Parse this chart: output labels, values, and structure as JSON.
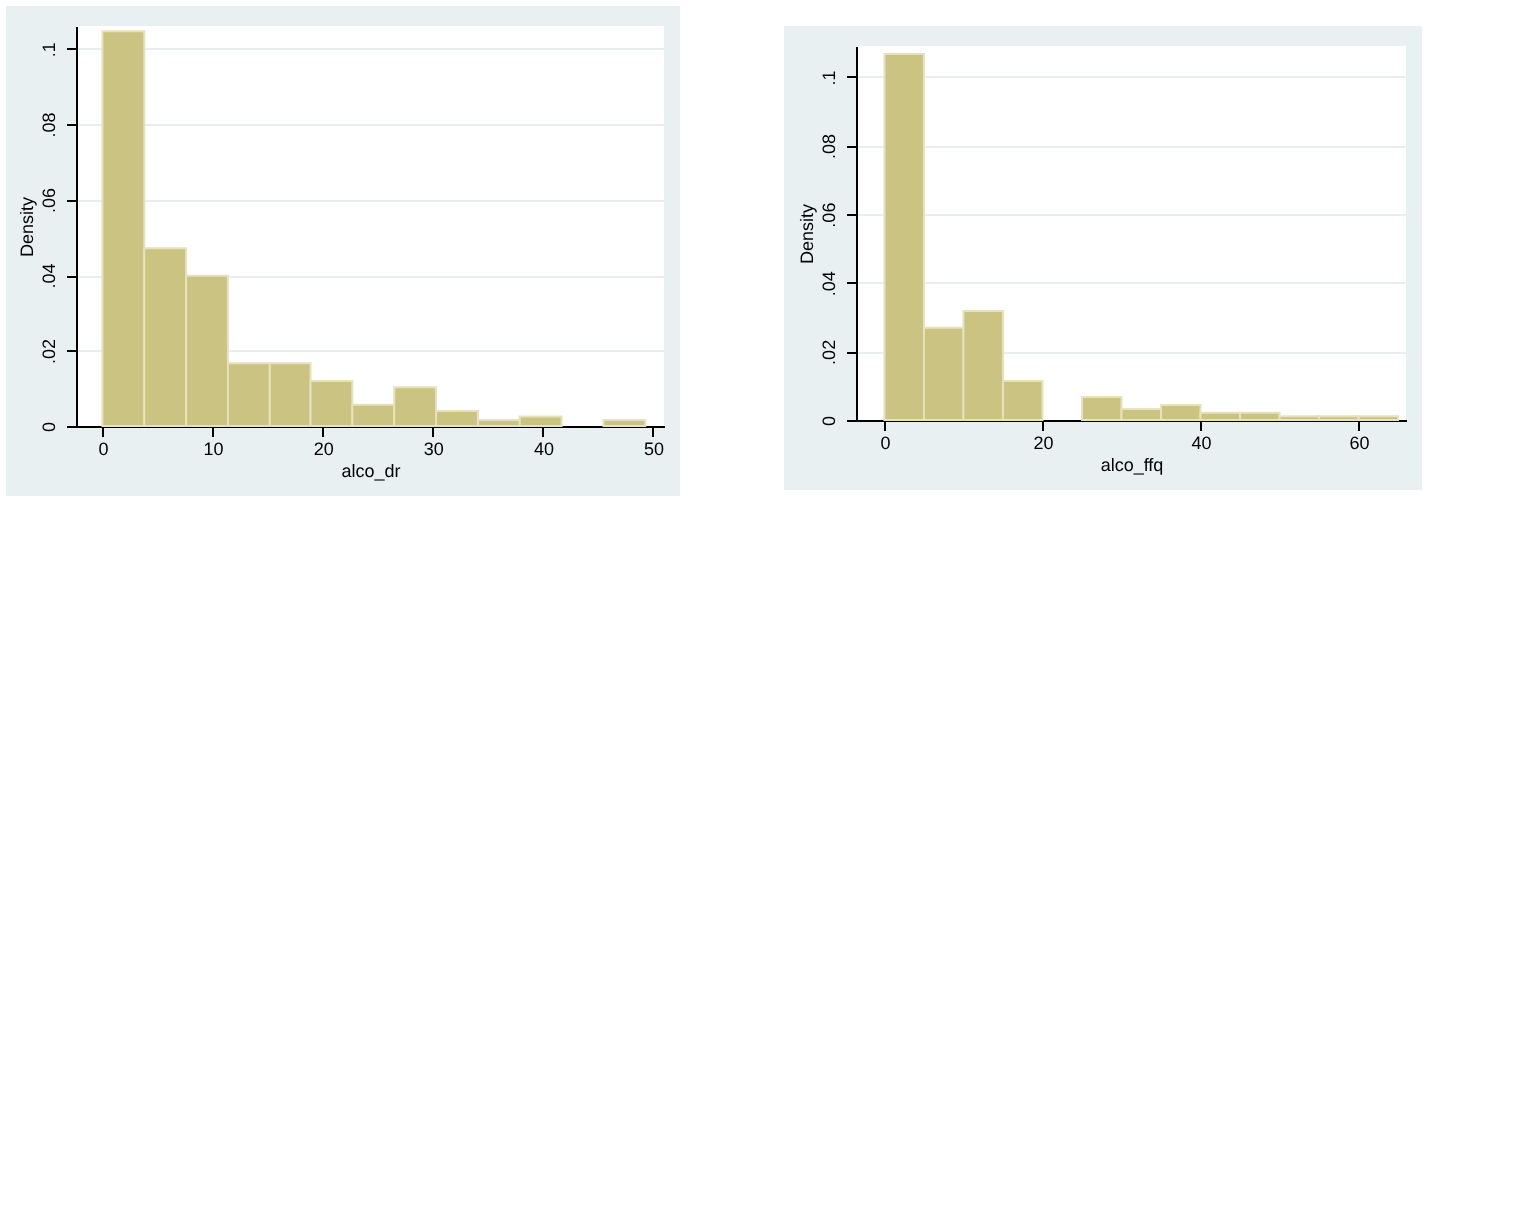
{
  "chart_data": [
    {
      "type": "histogram",
      "xlabel": "alco_dr",
      "ylabel": "Density",
      "color": "#cbc382",
      "grid": "y",
      "bins": [
        0,
        3.8,
        7.6,
        11.4,
        15.2,
        18.9,
        22.7,
        26.5,
        30.3,
        34.1,
        37.9,
        41.7,
        45.5,
        49.3
      ],
      "values": [
        0.1046,
        0.0471,
        0.0398,
        0.0166,
        0.0166,
        0.0119,
        0.0056,
        0.0103,
        0.004,
        0.0016,
        0.0025,
        0,
        0.0016
      ],
      "xlim": [
        -2.4,
        51
      ],
      "xticks": [
        0,
        10,
        20,
        30,
        40,
        50
      ],
      "ylim": [
        0,
        0.106
      ],
      "yticks": [
        0,
        {
          "value": 0.02,
          "label": ".02"
        },
        {
          "value": 0.04,
          "label": ".04"
        },
        {
          "value": 0.06,
          "label": ".06"
        },
        {
          "value": 0.08,
          "label": ".08"
        },
        {
          "value": 0.1,
          "label": ".1"
        }
      ]
    },
    {
      "type": "histogram",
      "xlabel": "alco_ffq",
      "ylabel": "Density",
      "color": "#cbc382",
      "grid": "y",
      "bins": [
        0,
        5,
        10,
        15,
        20,
        25,
        30,
        35,
        40,
        45,
        50,
        55,
        60,
        65
      ],
      "values": [
        0.1067,
        0.0269,
        0.0318,
        0.0114,
        0,
        0.0067,
        0.0032,
        0.0044,
        0.0021,
        0.0021,
        0.0011,
        0.0011,
        0.0011
      ],
      "xlim": [
        -3.6,
        66
      ],
      "xticks": [
        0,
        20,
        40,
        60
      ],
      "ylim": [
        0,
        0.109
      ],
      "yticks": [
        0,
        {
          "value": 0.02,
          "label": ".02"
        },
        {
          "value": 0.04,
          "label": ".04"
        },
        {
          "value": 0.06,
          "label": ".06"
        },
        {
          "value": 0.08,
          "label": ".08"
        },
        {
          "value": 0.1,
          "label": ".1"
        }
      ]
    }
  ]
}
